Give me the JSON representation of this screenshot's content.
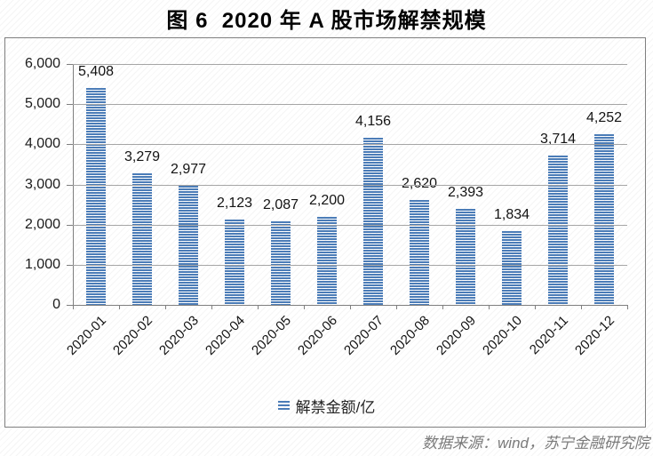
{
  "title": "图 6  2020 年 A 股市场解禁规模",
  "chart_data": {
    "type": "bar",
    "title": "图 6  2020 年 A 股市场解禁规模",
    "categories": [
      "2020-01",
      "2020-02",
      "2020-03",
      "2020-04",
      "2020-05",
      "2020-06",
      "2020-07",
      "2020-08",
      "2020-09",
      "2020-10",
      "2020-11",
      "2020-12"
    ],
    "series": [
      {
        "name": "解禁金额/亿",
        "values": [
          5408,
          3279,
          2977,
          2123,
          2087,
          2200,
          4156,
          2620,
          2393,
          1834,
          3714,
          4252
        ]
      }
    ],
    "data_labels_shown": true,
    "xlabel": "",
    "ylabel": "",
    "ylim": [
      0,
      6000
    ],
    "ytick_interval": 1000,
    "grid": true,
    "legend_position": "bottom",
    "bar_color": "#4a7cb8",
    "bar_pattern": "horizontal-stripes"
  },
  "legend": {
    "label": "解禁金额/亿"
  },
  "source": {
    "text": "数据来源：wind，苏宁金融研究院"
  },
  "colors": {
    "bar": "#4a7cb8",
    "gridline": "#a6a6a6",
    "axis": "#7f7f7f",
    "source_text": "#7a7a7a"
  }
}
